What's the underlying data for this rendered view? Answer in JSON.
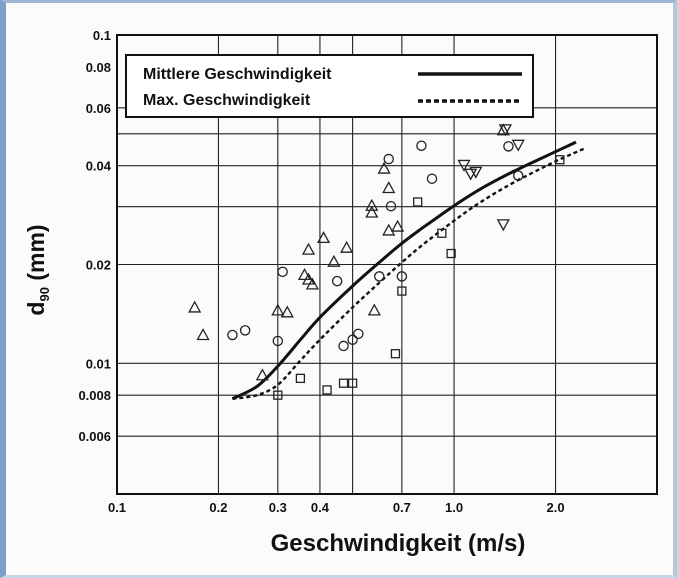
{
  "chart_data": {
    "type": "scatter",
    "title": "",
    "xlabel": "Geschwindigkeit (m/s)",
    "ylabel_main": "d",
    "ylabel_sub": "90",
    "ylabel_unit": " (mm)",
    "x_scale": "log",
    "y_scale": "log",
    "xlim": [
      0.1,
      4.0
    ],
    "ylim": [
      0.004,
      0.1
    ],
    "grid": true,
    "legend_position": "top-left",
    "x_ticks": [
      {
        "value": 0.1,
        "label": "0.1"
      },
      {
        "value": 0.2,
        "label": "0.2"
      },
      {
        "value": 0.3,
        "label": "0.3"
      },
      {
        "value": 0.4,
        "label": "0.4"
      },
      {
        "value": 0.7,
        "label": "0.7"
      },
      {
        "value": 1.0,
        "label": "1.0"
      },
      {
        "value": 2.0,
        "label": "2.0"
      }
    ],
    "x_grid": [
      0.2,
      0.3,
      0.4,
      0.5,
      0.7,
      1.0,
      2.0
    ],
    "y_ticks": [
      {
        "value": 0.1,
        "label": "0.1"
      },
      {
        "value": 0.08,
        "label": "0.08"
      },
      {
        "value": 0.06,
        "label": "0.06"
      },
      {
        "value": 0.04,
        "label": "0.04"
      },
      {
        "value": 0.02,
        "label": "0.02"
      },
      {
        "value": 0.01,
        "label": "0.01"
      },
      {
        "value": 0.008,
        "label": "0.008"
      },
      {
        "value": 0.006,
        "label": "0.006"
      }
    ],
    "y_grid": [
      0.006,
      0.008,
      0.01,
      0.02,
      0.03,
      0.04,
      0.05,
      0.06
    ],
    "lines": [
      {
        "name": "Mittlere Geschwindigkeit",
        "style": "solid",
        "color": "#111111",
        "x": [
          0.22,
          0.26,
          0.3,
          0.35,
          0.4,
          0.5,
          0.6,
          0.7,
          0.8,
          1.0,
          1.2,
          1.5,
          2.0,
          2.3
        ],
        "y": [
          0.0078,
          0.0085,
          0.0098,
          0.0118,
          0.0138,
          0.0172,
          0.0203,
          0.0232,
          0.0257,
          0.0302,
          0.034,
          0.0384,
          0.0441,
          0.0472
        ]
      },
      {
        "name": "Max. Geschwindigkeit",
        "style": "dashed",
        "color": "#111111",
        "x": [
          0.22,
          0.26,
          0.3,
          0.35,
          0.4,
          0.5,
          0.6,
          0.7,
          0.8,
          1.0,
          1.2,
          1.5,
          2.0,
          2.45
        ],
        "y": [
          0.0078,
          0.008,
          0.0086,
          0.0102,
          0.0118,
          0.0148,
          0.0176,
          0.0203,
          0.0228,
          0.0272,
          0.031,
          0.0355,
          0.0412,
          0.0452
        ]
      }
    ],
    "scatter_series": [
      {
        "marker": "triangle-up",
        "x": [
          0.17,
          0.18,
          0.27,
          0.3,
          0.32,
          0.36,
          0.37,
          0.37,
          0.38,
          0.41,
          0.44,
          0.48,
          0.57,
          0.57,
          0.58,
          0.62,
          0.64,
          0.64,
          0.68,
          1.4
        ],
        "y": [
          0.0148,
          0.0122,
          0.0092,
          0.0145,
          0.0143,
          0.0186,
          0.0222,
          0.018,
          0.0174,
          0.0241,
          0.0204,
          0.0225,
          0.0288,
          0.0302,
          0.0145,
          0.0392,
          0.0342,
          0.0254,
          0.0261,
          0.0513
        ]
      },
      {
        "marker": "circle",
        "x": [
          0.22,
          0.24,
          0.3,
          0.31,
          0.45,
          0.47,
          0.5,
          0.52,
          0.6,
          0.64,
          0.65,
          0.7,
          0.8,
          0.86,
          1.45,
          1.55
        ],
        "y": [
          0.0122,
          0.0126,
          0.0117,
          0.019,
          0.0178,
          0.0113,
          0.0118,
          0.0123,
          0.0184,
          0.0419,
          0.0301,
          0.0184,
          0.046,
          0.0365,
          0.0458,
          0.0373
        ]
      },
      {
        "marker": "square",
        "x": [
          0.3,
          0.35,
          0.42,
          0.47,
          0.5,
          0.67,
          0.7,
          0.78,
          0.92,
          0.98,
          2.06
        ],
        "y": [
          0.008,
          0.009,
          0.0083,
          0.0087,
          0.0087,
          0.0107,
          0.0166,
          0.031,
          0.0249,
          0.0216,
          0.0417
        ]
      },
      {
        "marker": "triangle-down",
        "x": [
          1.07,
          1.12,
          1.16,
          1.4,
          1.42,
          1.55
        ],
        "y": [
          0.0402,
          0.0378,
          0.0383,
          0.0265,
          0.0516,
          0.0463
        ]
      }
    ]
  }
}
